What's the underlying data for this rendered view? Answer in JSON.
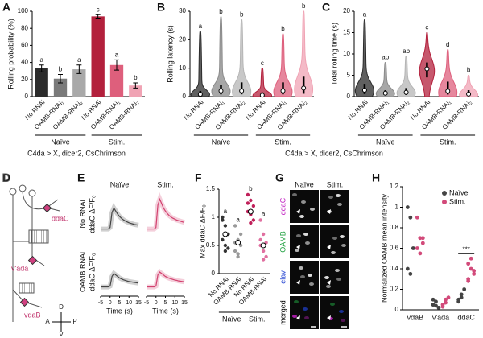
{
  "chart_data": [
    {
      "panel": "A",
      "type": "bar",
      "ylabel": "Rolling probability (%)",
      "categories": [
        "No RNAi",
        "OAMB-RNAi₁",
        "OAMB-RNAi₂",
        "No RNAi",
        "OAMB-RNAi₁",
        "OAMB-RNAi₂"
      ],
      "values": [
        33,
        21,
        32,
        94,
        37,
        13
      ],
      "errors": [
        4,
        5,
        5,
        2,
        6,
        3
      ],
      "letters": [
        "a",
        "b",
        "a",
        "c",
        "a",
        "b"
      ],
      "colors": [
        "#2b2b2b",
        "#7a7a7a",
        "#a9a9a9",
        "#b3203c",
        "#de5f7c",
        "#f0a3b4"
      ],
      "groups": [
        "Naïve",
        "Stim."
      ],
      "ylim": [
        0,
        100
      ],
      "yticks": [
        0,
        20,
        40,
        60,
        80,
        100
      ],
      "footer": "C4da > X, dicer2, CsChrimson"
    },
    {
      "panel": "B",
      "type": "violin",
      "ylabel": "Rolling latency (s)",
      "categories": [
        "No RNAi",
        "OAMB-RNAi₁",
        "OAMB-RNAi₂",
        "No RNAi",
        "OAMB-RNAi₁",
        "OAMB-RNAi₂"
      ],
      "medians": [
        0.8,
        2,
        2,
        0.5,
        2,
        3
      ],
      "q1": [
        0.3,
        0.8,
        0.8,
        0.2,
        0.8,
        1
      ],
      "q3": [
        2,
        4,
        5,
        1.5,
        5,
        7
      ],
      "maxima": [
        23,
        28,
        27,
        10,
        22,
        30
      ],
      "letters": [
        "a",
        "b",
        "b",
        "c",
        "b",
        "b"
      ],
      "colors": [
        "#2b2b2b",
        "#8a8a8a",
        "#b5b5b5",
        "#b3203c",
        "#de5f7c",
        "#f0a3b4"
      ],
      "groups": [
        "Naïve",
        "Stim."
      ],
      "ylim": [
        0,
        30
      ],
      "yticks": [
        0,
        10,
        20,
        30
      ],
      "footer": "C4da > X, dicer2, CsChrimson"
    },
    {
      "panel": "C",
      "type": "violin",
      "ylabel": "Total rolling time (s)",
      "categories": [
        "No RNAi",
        "OAMB-RNAi₁",
        "OAMB-RNAi₂",
        "No RNAi",
        "OAMB-RNAi₁",
        "OAMB-RNAi₂"
      ],
      "medians": [
        1.5,
        0.8,
        1,
        6.5,
        1.3,
        0.6
      ],
      "q1": [
        0.6,
        0.3,
        0.4,
        4.5,
        0.5,
        0.2
      ],
      "q3": [
        3,
        1.5,
        2,
        8,
        3.5,
        1.5
      ],
      "maxima": [
        18,
        8,
        9.5,
        15,
        11,
        5
      ],
      "letters": [
        "a",
        "ab",
        "ab",
        "c",
        "d",
        "b"
      ],
      "colors": [
        "#2b2b2b",
        "#8a8a8a",
        "#b5b5b5",
        "#b3203c",
        "#de5f7c",
        "#f0a3b4"
      ],
      "groups": [
        "Naïve",
        "Stim."
      ],
      "ylim": [
        0,
        20
      ],
      "yticks": [
        0,
        5,
        10,
        15,
        20
      ]
    },
    {
      "panel": "D",
      "type": "diagram",
      "labels": [
        "ddaC",
        "v'ada",
        "vdaB"
      ],
      "compass": [
        "D",
        "V",
        "A",
        "P"
      ]
    },
    {
      "panel": "E",
      "type": "line",
      "columns": [
        "Naïve",
        "Stim."
      ],
      "rows": [
        "No RNAi",
        "OAMB RNAi"
      ],
      "ylabel": "ddaC ΔF/F₀",
      "xlabel": "Time (s)",
      "x": [
        -5,
        -4,
        -3,
        -2,
        -1,
        0,
        1,
        2,
        3,
        4,
        5,
        6,
        7,
        8,
        9,
        10,
        11,
        12,
        13,
        14,
        15
      ],
      "xlim": [
        -5,
        15
      ],
      "xticks": [
        -5,
        0,
        5,
        10,
        15
      ],
      "ylim": [
        -0.2,
        1.2
      ],
      "colors": [
        "#444444",
        "#d2406e"
      ],
      "traces": [
        [
          [
            0,
            0,
            0,
            0,
            0,
            0.05,
            0.55,
            0.7,
            0.6,
            0.5,
            0.42,
            0.36,
            0.31,
            0.27,
            0.24,
            0.21,
            0.19,
            0.17,
            0.15,
            0.14,
            0.13
          ],
          [
            0,
            0,
            0,
            0,
            0,
            0.05,
            0.8,
            1.0,
            0.85,
            0.7,
            0.6,
            0.52,
            0.45,
            0.4,
            0.36,
            0.33,
            0.3,
            0.28,
            0.26,
            0.24,
            0.22
          ]
        ],
        [
          [
            0,
            0,
            0,
            0,
            0,
            0.03,
            0.35,
            0.45,
            0.4,
            0.35,
            0.3,
            0.27,
            0.24,
            0.22,
            0.2,
            0.18,
            0.17,
            0.16,
            0.15,
            0.14,
            0.13
          ],
          [
            0,
            0,
            0,
            0,
            0,
            0.03,
            0.4,
            0.5,
            0.45,
            0.4,
            0.35,
            0.32,
            0.29,
            0.27,
            0.25,
            0.23,
            0.22,
            0.2,
            0.19,
            0.18,
            0.17
          ]
        ]
      ]
    },
    {
      "panel": "F",
      "type": "dot",
      "ylabel": "Max ddaC ΔF/F₀",
      "categories": [
        "No RNAi",
        "OAMB-RNAi",
        "No RNAi",
        "OAMB-RNAi"
      ],
      "groups": [
        "Naïve",
        "Stim."
      ],
      "colors": [
        "#333333",
        "#9a9a9a",
        "#c0205a",
        "#e070a0"
      ],
      "points": [
        [
          0.95,
          0.85,
          0.7,
          0.6,
          0.5,
          0.45,
          1.0,
          0.4
        ],
        [
          0.85,
          0.6,
          0.5,
          0.4,
          0.35,
          0.7,
          0.55,
          0.3
        ],
        [
          1.4,
          1.3,
          1.2,
          1.1,
          1.05,
          0.95,
          1.25,
          0.9
        ],
        [
          0.95,
          0.7,
          0.55,
          0.5,
          0.4,
          0.3,
          0.6,
          0.25
        ]
      ],
      "means": [
        0.7,
        0.55,
        1.1,
        0.5
      ],
      "letters": [
        "a",
        "a",
        "b",
        "a"
      ],
      "ylim": [
        0,
        1.5
      ],
      "yticks": [
        0,
        0.5,
        1,
        1.5
      ]
    },
    {
      "panel": "G",
      "type": "image",
      "columns": [
        "Naïve",
        "Stim."
      ],
      "rows": [
        "ddaC",
        "OAMB",
        "elav",
        "merged"
      ],
      "row_colors": [
        "#c020c0",
        "#20a040",
        "#2040d0",
        "#000000"
      ]
    },
    {
      "panel": "H",
      "type": "dot",
      "ylabel": "Normalized OAMB mean intensity",
      "categories": [
        "vdaB",
        "v'ada",
        "ddaC"
      ],
      "annotations": [
        null,
        null,
        "***"
      ],
      "series": [
        {
          "name": "Naïve",
          "color": "#444444",
          "values": [
            [
              1.0,
              0.9,
              0.6,
              0.4,
              0.35
            ],
            [
              0.05,
              0.08,
              0.02,
              0.1,
              0.04
            ],
            [
              0.1,
              0.15,
              0.2,
              0.08,
              0.12
            ]
          ]
        },
        {
          "name": "Stim.",
          "color": "#d24a7a",
          "values": [
            [
              0.9,
              0.7,
              0.65,
              0.6,
              0.55,
              0.7
            ],
            [
              0.05,
              0.1,
              0.12,
              0.03,
              0.07
            ],
            [
              0.45,
              0.4,
              0.35,
              0.3,
              0.5,
              0.38,
              0.28
            ]
          ]
        }
      ],
      "ylim": [
        0,
        1.2
      ],
      "yticks": [
        0,
        0.2,
        0.4,
        0.6,
        0.8,
        1,
        1.2
      ]
    }
  ]
}
